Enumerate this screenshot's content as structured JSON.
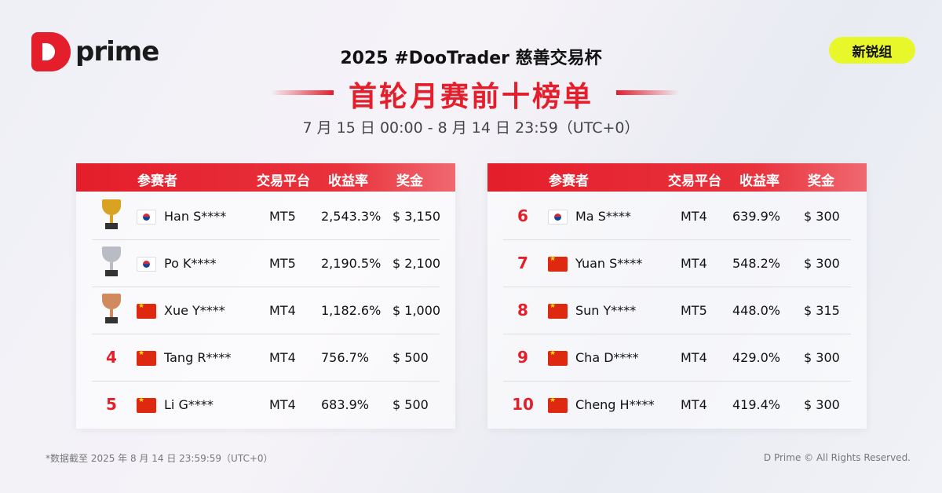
{
  "brand": {
    "logo_text": "prime"
  },
  "header": {
    "title": "2025 #DooTrader 慈善交易杯",
    "subtitle": "首轮月赛前十榜单",
    "date_range": "7 月 15 日 00:00 - 8 月 14 日 23:59（UTC+0）",
    "badge": "新锐组"
  },
  "columns": [
    "参赛者",
    "交易平台",
    "收益率",
    "奖金"
  ],
  "colors": {
    "accent": "#e41e2b",
    "badge": "#e8f72a",
    "gold": "#d9a321",
    "silver": "#b8bcc4",
    "bronze": "#d08a5e"
  },
  "left_rows": [
    {
      "rank": "1",
      "trophy": "gold",
      "flag": "kr",
      "name": "Han S****",
      "platform": "MT5",
      "return": "2,543.3%",
      "prize": "$ 3,150"
    },
    {
      "rank": "2",
      "trophy": "silver",
      "flag": "kr",
      "name": "Po K****",
      "platform": "MT5",
      "return": "2,190.5%",
      "prize": "$ 2,100"
    },
    {
      "rank": "3",
      "trophy": "bronze",
      "flag": "cn",
      "name": "Xue Y****",
      "platform": "MT4",
      "return": "1,182.6%",
      "prize": "$ 1,000"
    },
    {
      "rank": "4",
      "flag": "cn",
      "name": "Tang R****",
      "platform": "MT4",
      "return": "756.7%",
      "prize": "$ 500"
    },
    {
      "rank": "5",
      "flag": "cn",
      "name": "Li G****",
      "platform": "MT4",
      "return": "683.9%",
      "prize": "$ 500"
    }
  ],
  "right_rows": [
    {
      "rank": "6",
      "flag": "kr",
      "name": "Ma S****",
      "platform": "MT4",
      "return": "639.9%",
      "prize": "$ 300"
    },
    {
      "rank": "7",
      "flag": "cn",
      "name": "Yuan S****",
      "platform": "MT4",
      "return": "548.2%",
      "prize": "$ 300"
    },
    {
      "rank": "8",
      "flag": "cn",
      "name": "Sun Y****",
      "platform": "MT5",
      "return": "448.0%",
      "prize": "$ 315"
    },
    {
      "rank": "9",
      "flag": "cn",
      "name": "Cha D****",
      "platform": "MT4",
      "return": "429.0%",
      "prize": "$ 300"
    },
    {
      "rank": "10",
      "flag": "cn",
      "name": "Cheng H****",
      "platform": "MT4",
      "return": "419.4%",
      "prize": "$ 300"
    }
  ],
  "footer": {
    "note": "*数据截至 2025 年 8 月 14 日 23:59:59（UTC+0）",
    "copyright": "D Prime © All Rights Reserved."
  }
}
